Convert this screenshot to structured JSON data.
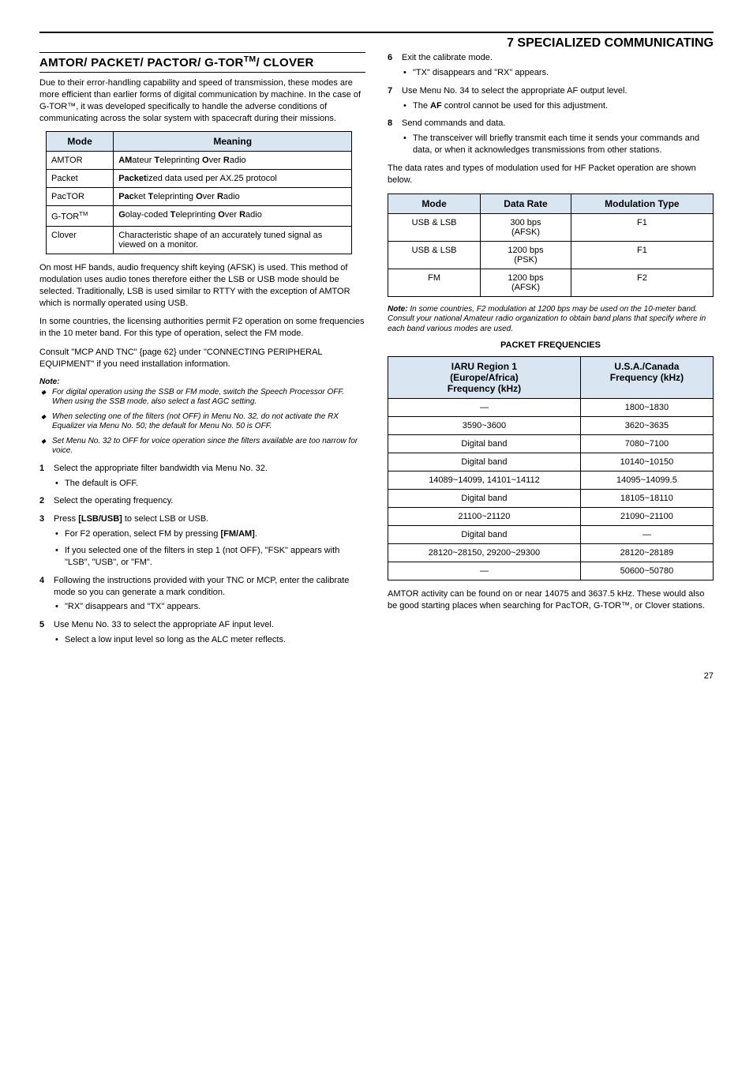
{
  "header": {
    "chapter": "7  SPECIALIZED COMMUNICATING"
  },
  "left": {
    "section_title": "AMTOR/ PACKET/ PACTOR/ G-TOR™/ CLOVER",
    "intro": "Due to their error-handling capability and speed of transmission, these modes are more efficient than earlier forms of digital communication by machine.  In the case of G-TOR™, it was developed specifically to handle the adverse conditions of communicating across the solar system with spacecraft during their missions.",
    "modes_table": {
      "headers": [
        "Mode",
        "Meaning"
      ],
      "rows": [
        {
          "mode": "AMTOR",
          "meaning_html": "<b>AM</b>ateur <b>T</b>eleprinting <b>O</b>ver <b>R</b>adio"
        },
        {
          "mode": "Packet",
          "meaning_html": "<b>Packet</b>ized data used per AX.25 protocol"
        },
        {
          "mode": "PacTOR",
          "meaning_html": "<b>Pac</b>ket <b>T</b>eleprinting <b>O</b>ver <b>R</b>adio"
        },
        {
          "mode": "G-TOR™",
          "meaning_html": "<b>G</b>olay-coded <b>T</b>eleprinting <b>O</b>ver <b>R</b>adio"
        },
        {
          "mode": "Clover",
          "meaning_html": "Characteristic shape of an accurately tuned signal as viewed on a monitor."
        }
      ]
    },
    "para2": "On most HF bands, audio frequency shift keying (AFSK) is used.  This method of modulation uses audio tones therefore either the LSB or USB mode should be selected.  Traditionally, LSB is used similar to RTTY with the exception of AMTOR which is normally operated using USB.",
    "para3": "In some countries, the licensing authorities permit F2 operation on some frequencies in the 10 meter band.  For this type of operation, select the FM mode.",
    "para4": "Consult \"MCP AND TNC\" {page 62} under \"CONNECTING PERIPHERAL EQUIPMENT\" if you need installation information.",
    "note_label": "Note:",
    "notes": [
      "For digital operation using the SSB or FM mode, switch the Speech Processor OFF.  When using the SSB mode, also select a fast AGC setting.",
      "When selecting one of the filters (not OFF) in Menu No. 32, do not activate the RX Equalizer via Menu No. 50; the default for Menu No. 50 is OFF.",
      "Set Menu No. 32 to OFF for voice operation since the filters available are too narrow for voice."
    ],
    "steps": [
      {
        "text": "Select the appropriate filter bandwidth via Menu No. 32.",
        "sub": [
          "The default is OFF."
        ]
      },
      {
        "text": "Select the operating frequency."
      },
      {
        "text_html": "Press <b>[LSB/USB]</b> to select LSB or USB.",
        "sub_html": [
          "For F2 operation, select FM by pressing <b>[FM/AM]</b>.",
          "If you selected one of the filters in step 1 (not OFF), \"FSK\" appears with \"LSB\", \"USB\", or \"FM\"."
        ]
      },
      {
        "text": "Following the instructions provided with your TNC or MCP, enter the calibrate mode so you can generate a mark condition.",
        "sub": [
          "\"RX\" disappears and \"TX\" appears."
        ]
      },
      {
        "text": "Use Menu No. 33 to select the appropriate AF input level.",
        "sub": [
          "Select a low input level so long as the ALC meter reflects."
        ]
      }
    ]
  },
  "right": {
    "steps": [
      {
        "text": "Exit the calibrate mode.",
        "sub": [
          "\"TX\" disappears and \"RX\" appears."
        ]
      },
      {
        "text": "Use Menu No. 34 to select the appropriate AF output level.",
        "sub_html": [
          "The <b>AF</b> control cannot be used for this adjustment."
        ]
      },
      {
        "text": "Send commands and data.",
        "sub": [
          "The transceiver will briefly transmit each time it sends your commands and data, or when it acknowledges transmissions from other stations."
        ]
      }
    ],
    "para1": "The data rates and types of modulation used for HF Packet operation are shown below.",
    "mod_table": {
      "headers": [
        "Mode",
        "Data Rate",
        "Modulation Type"
      ],
      "rows": [
        {
          "mode": "USB & LSB",
          "rate": "300 bps (AFSK)",
          "type": "F1"
        },
        {
          "mode": "USB & LSB",
          "rate": "1200 bps (PSK)",
          "type": "F1"
        },
        {
          "mode": "FM",
          "rate": "1200 bps (AFSK)",
          "type": "F2"
        }
      ]
    },
    "note_html": "<b>Note:</b>   In some countries, F2 modulation at 1200 bps may be used on the 10-meter band.  Consult your national Amateur radio organization to obtain band plans that specify where in each band various modes are used.",
    "subhead": "PACKET FREQUENCIES",
    "freq_table": {
      "headers": [
        "IARU Region 1\n(Europe/Africa)\nFrequency (kHz)",
        "U.S.A./Canada\nFrequency (kHz)"
      ],
      "rows": [
        [
          "—",
          "1800~1830"
        ],
        [
          "3590~3600",
          "3620~3635"
        ],
        [
          "Digital band",
          "7080~7100"
        ],
        [
          "Digital band",
          "10140~10150"
        ],
        [
          "14089~14099, 14101~14112",
          "14095~14099.5"
        ],
        [
          "Digital band",
          "18105~18110"
        ],
        [
          "21100~21120",
          "21090~21100"
        ],
        [
          "Digital band",
          "—"
        ],
        [
          "28120~28150, 29200~29300",
          "28120~28189"
        ],
        [
          "—",
          "50600~50780"
        ]
      ]
    },
    "para2": "AMTOR activity can be found on or near 14075 and 3637.5 kHz.  These would also be good starting places when searching for PacTOR, G-TOR™, or Clover stations."
  },
  "page_number": "27"
}
